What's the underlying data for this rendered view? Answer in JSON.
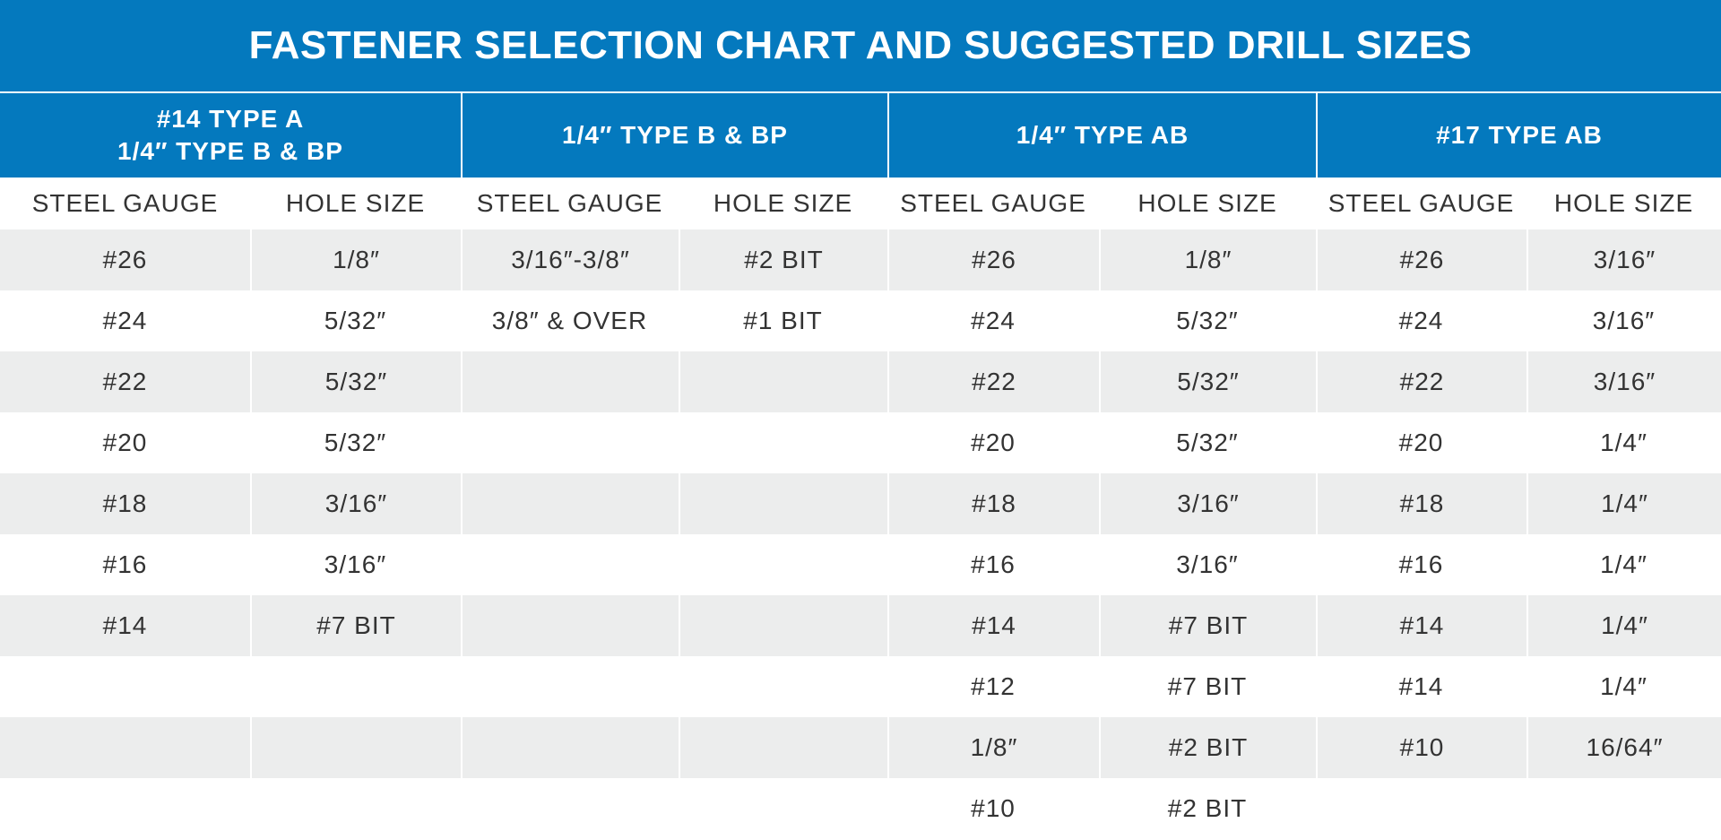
{
  "title": "FASTENER SELECTION CHART AND SUGGESTED DRILL SIZES",
  "groups": [
    {
      "lines": [
        "#14 TYPE A",
        "1/4″ TYPE B & BP"
      ]
    },
    {
      "lines": [
        "1/4″ TYPE B & BP"
      ]
    },
    {
      "lines": [
        "1/4″ TYPE AB"
      ]
    },
    {
      "lines": [
        "#17 TYPE AB"
      ]
    }
  ],
  "subheaders": [
    "STEEL GAUGE",
    "HOLE SIZE",
    "STEEL GAUGE",
    "HOLE SIZE",
    "STEEL GAUGE",
    "HOLE SIZE",
    "STEEL GAUGE",
    "HOLE SIZE"
  ],
  "rows": [
    [
      "#26",
      "1/8″",
      "3/16″-3/8″",
      "#2 BIT",
      "#26",
      "1/8″",
      "#26",
      "3/16″"
    ],
    [
      "#24",
      "5/32″",
      "3/8″ & OVER",
      "#1 BIT",
      "#24",
      "5/32″",
      "#24",
      "3/16″"
    ],
    [
      "#22",
      "5/32″",
      "",
      "",
      "#22",
      "5/32″",
      "#22",
      "3/16″"
    ],
    [
      "#20",
      "5/32″",
      "",
      "",
      "#20",
      "5/32″",
      "#20",
      "1/4″"
    ],
    [
      "#18",
      "3/16″",
      "",
      "",
      "#18",
      "3/16″",
      "#18",
      "1/4″"
    ],
    [
      "#16",
      "3/16″",
      "",
      "",
      "#16",
      "3/16″",
      "#16",
      "1/4″"
    ],
    [
      "#14",
      "#7 BIT",
      "",
      "",
      "#14",
      "#7 BIT",
      "#14",
      "1/4″"
    ],
    [
      "",
      "",
      "",
      "",
      "#12",
      "#7 BIT",
      "#14",
      "1/4″"
    ],
    [
      "",
      "",
      "",
      "",
      "1/8″",
      "#2 BIT",
      "#10",
      "16/64″"
    ],
    [
      "",
      "",
      "",
      "",
      "#10",
      "#2 BIT",
      "",
      ""
    ]
  ]
}
